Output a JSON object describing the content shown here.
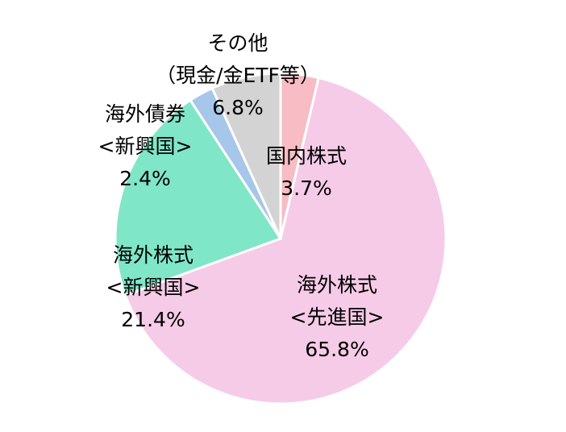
{
  "chart_data": {
    "type": "pie",
    "categories": [
      [
        "国内株式"
      ],
      [
        "海外株式",
        "<先進国>"
      ],
      [
        "海外株式",
        "<新興国>"
      ],
      [
        "海外債券",
        "<新興国>"
      ],
      [
        "その他",
        "（現金/金ETF等）"
      ]
    ],
    "values": [
      3.7,
      65.8,
      21.4,
      2.4,
      6.8
    ],
    "value_labels": [
      "3.7%",
      "65.8%",
      "21.4%",
      "2.4%",
      "6.8%"
    ],
    "colors": [
      "#f7bcc4",
      "#f6cbe8",
      "#80e6c8",
      "#a6c6ea",
      "#d3d3d3"
    ]
  }
}
